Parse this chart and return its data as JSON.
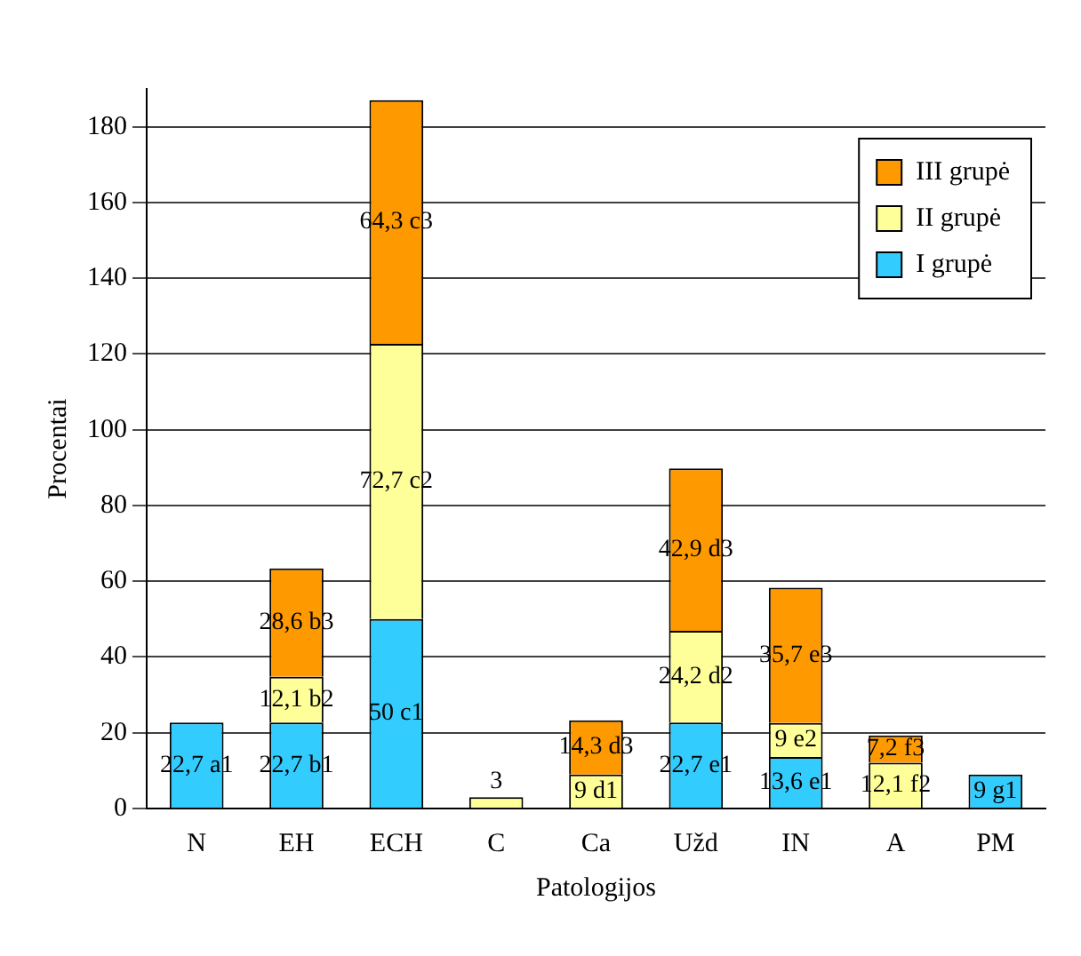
{
  "chart_data": {
    "type": "bar",
    "stacked": true,
    "xlabel": "Patologijos",
    "ylabel": "Procentai",
    "categories": [
      "N",
      "EH",
      "ECH",
      "C",
      "Ca",
      "Užd",
      "IN",
      "A",
      "PM"
    ],
    "series": [
      {
        "name": "I grupė",
        "color": "#33ccff",
        "values": [
          22.7,
          22.7,
          50,
          0,
          0,
          22.7,
          13.6,
          0,
          9
        ],
        "value_labels": [
          "22,7 a1",
          "22,7 b1",
          "50 c1",
          null,
          null,
          "22,7 e1",
          "13,6 e1",
          null,
          "9 g1"
        ]
      },
      {
        "name": "II grupė",
        "color": "#ffff99",
        "values": [
          0,
          12.1,
          72.7,
          3,
          9,
          24.2,
          9,
          12.1,
          0
        ],
        "value_labels": [
          null,
          "12,1 b2",
          "72,7 c2",
          "3",
          "9 d1",
          "24,2 d2",
          "9 e2",
          "12,1 f2",
          null
        ]
      },
      {
        "name": "III grupė",
        "color": "#ff9900",
        "values": [
          0,
          28.6,
          64.3,
          0,
          14.3,
          42.9,
          35.7,
          7.2,
          0
        ],
        "value_labels": [
          null,
          "28,6 b3",
          "64,3 c3",
          null,
          "14,3 d3",
          "42,9 d3",
          "35,7 e3",
          "7,2 f3",
          null
        ]
      }
    ],
    "ylim": [
      0,
      190
    ],
    "yticks": [
      0,
      20,
      40,
      60,
      80,
      100,
      120,
      140,
      160,
      180
    ],
    "grid": "y",
    "legend": "top right"
  }
}
